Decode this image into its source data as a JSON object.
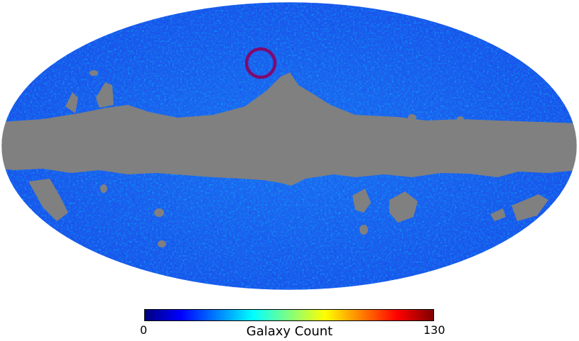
{
  "map": {
    "projection": "mollweide",
    "masked_region_color": "#808080",
    "highlight_circle_color": "#800a6e"
  },
  "colorbar": {
    "colormap": "jet",
    "stops": [
      "#00007f",
      "#0000ff",
      "#0080ff",
      "#00ffff",
      "#80ff80",
      "#ffff00",
      "#ff8000",
      "#ff0000",
      "#7f0000"
    ],
    "min_label": "0",
    "max_label": "130",
    "title": "Galaxy Count"
  }
}
